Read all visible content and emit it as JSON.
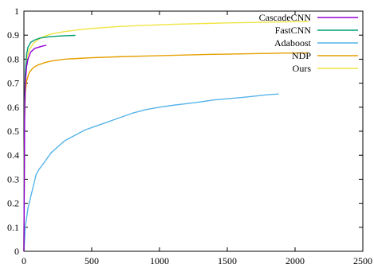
{
  "chart_data": {
    "type": "line",
    "title": "",
    "xlabel": "",
    "ylabel": "",
    "xlim": [
      0,
      2500
    ],
    "ylim": [
      0,
      1
    ],
    "xticks": [
      0,
      500,
      1000,
      1500,
      2000,
      2500
    ],
    "yticks": [
      0,
      0.1,
      0.2,
      0.3,
      0.4,
      0.5,
      0.6,
      0.7,
      0.8,
      0.9,
      1
    ],
    "xtick_labels": [
      "0",
      "500",
      "1000",
      "1500",
      "2000",
      "2500"
    ],
    "ytick_labels": [
      "0",
      "0.1",
      "0.2",
      "0.3",
      "0.4",
      "0.5",
      "0.6",
      "0.7",
      "0.8",
      "0.9",
      "1"
    ],
    "grid": false,
    "legend_position": "top-right",
    "series": [
      {
        "name": "CascadeCNN",
        "color": "#9400d3",
        "x": [
          0,
          5,
          10,
          20,
          30,
          50,
          80,
          110,
          140,
          165
        ],
        "y": [
          0,
          0.55,
          0.7,
          0.77,
          0.8,
          0.83,
          0.845,
          0.85,
          0.855,
          0.858
        ]
      },
      {
        "name": "FastCNN",
        "color": "#009e73",
        "x": [
          0,
          5,
          10,
          20,
          30,
          50,
          80,
          120,
          180,
          250,
          320,
          380
        ],
        "y": [
          0,
          0.6,
          0.74,
          0.82,
          0.85,
          0.87,
          0.88,
          0.888,
          0.893,
          0.896,
          0.898,
          0.899
        ]
      },
      {
        "name": "Adaboost",
        "color": "#56b4e9",
        "x": [
          0,
          10,
          30,
          60,
          90,
          110,
          150,
          200,
          250,
          300,
          350,
          400,
          450,
          500,
          550,
          600,
          700,
          800,
          900,
          1000,
          1100,
          1200,
          1300,
          1400,
          1500,
          1600,
          1700,
          1800,
          1880
        ],
        "y": [
          0,
          0.1,
          0.18,
          0.25,
          0.32,
          0.34,
          0.37,
          0.41,
          0.435,
          0.46,
          0.475,
          0.49,
          0.505,
          0.515,
          0.525,
          0.535,
          0.555,
          0.575,
          0.59,
          0.6,
          0.608,
          0.615,
          0.622,
          0.63,
          0.635,
          0.64,
          0.646,
          0.652,
          0.655
        ]
      },
      {
        "name": "NDP",
        "color": "#e69f00",
        "x": [
          0,
          5,
          10,
          20,
          40,
          70,
          100,
          150,
          200,
          300,
          400,
          500,
          700,
          900,
          1100,
          1300,
          1500,
          1700,
          1900,
          2100
        ],
        "y": [
          0,
          0.55,
          0.66,
          0.71,
          0.745,
          0.765,
          0.775,
          0.785,
          0.792,
          0.8,
          0.803,
          0.806,
          0.81,
          0.813,
          0.816,
          0.819,
          0.821,
          0.823,
          0.825,
          0.826
        ]
      },
      {
        "name": "Ours",
        "color": "#f0e442",
        "x": [
          0,
          5,
          10,
          20,
          40,
          70,
          100,
          150,
          200,
          300,
          400,
          500,
          700,
          900,
          1100,
          1300,
          1500,
          1700,
          1900,
          2100
        ],
        "y": [
          0,
          0.6,
          0.72,
          0.8,
          0.84,
          0.865,
          0.88,
          0.895,
          0.905,
          0.915,
          0.922,
          0.928,
          0.936,
          0.941,
          0.945,
          0.948,
          0.951,
          0.953,
          0.955,
          0.957
        ]
      }
    ]
  }
}
